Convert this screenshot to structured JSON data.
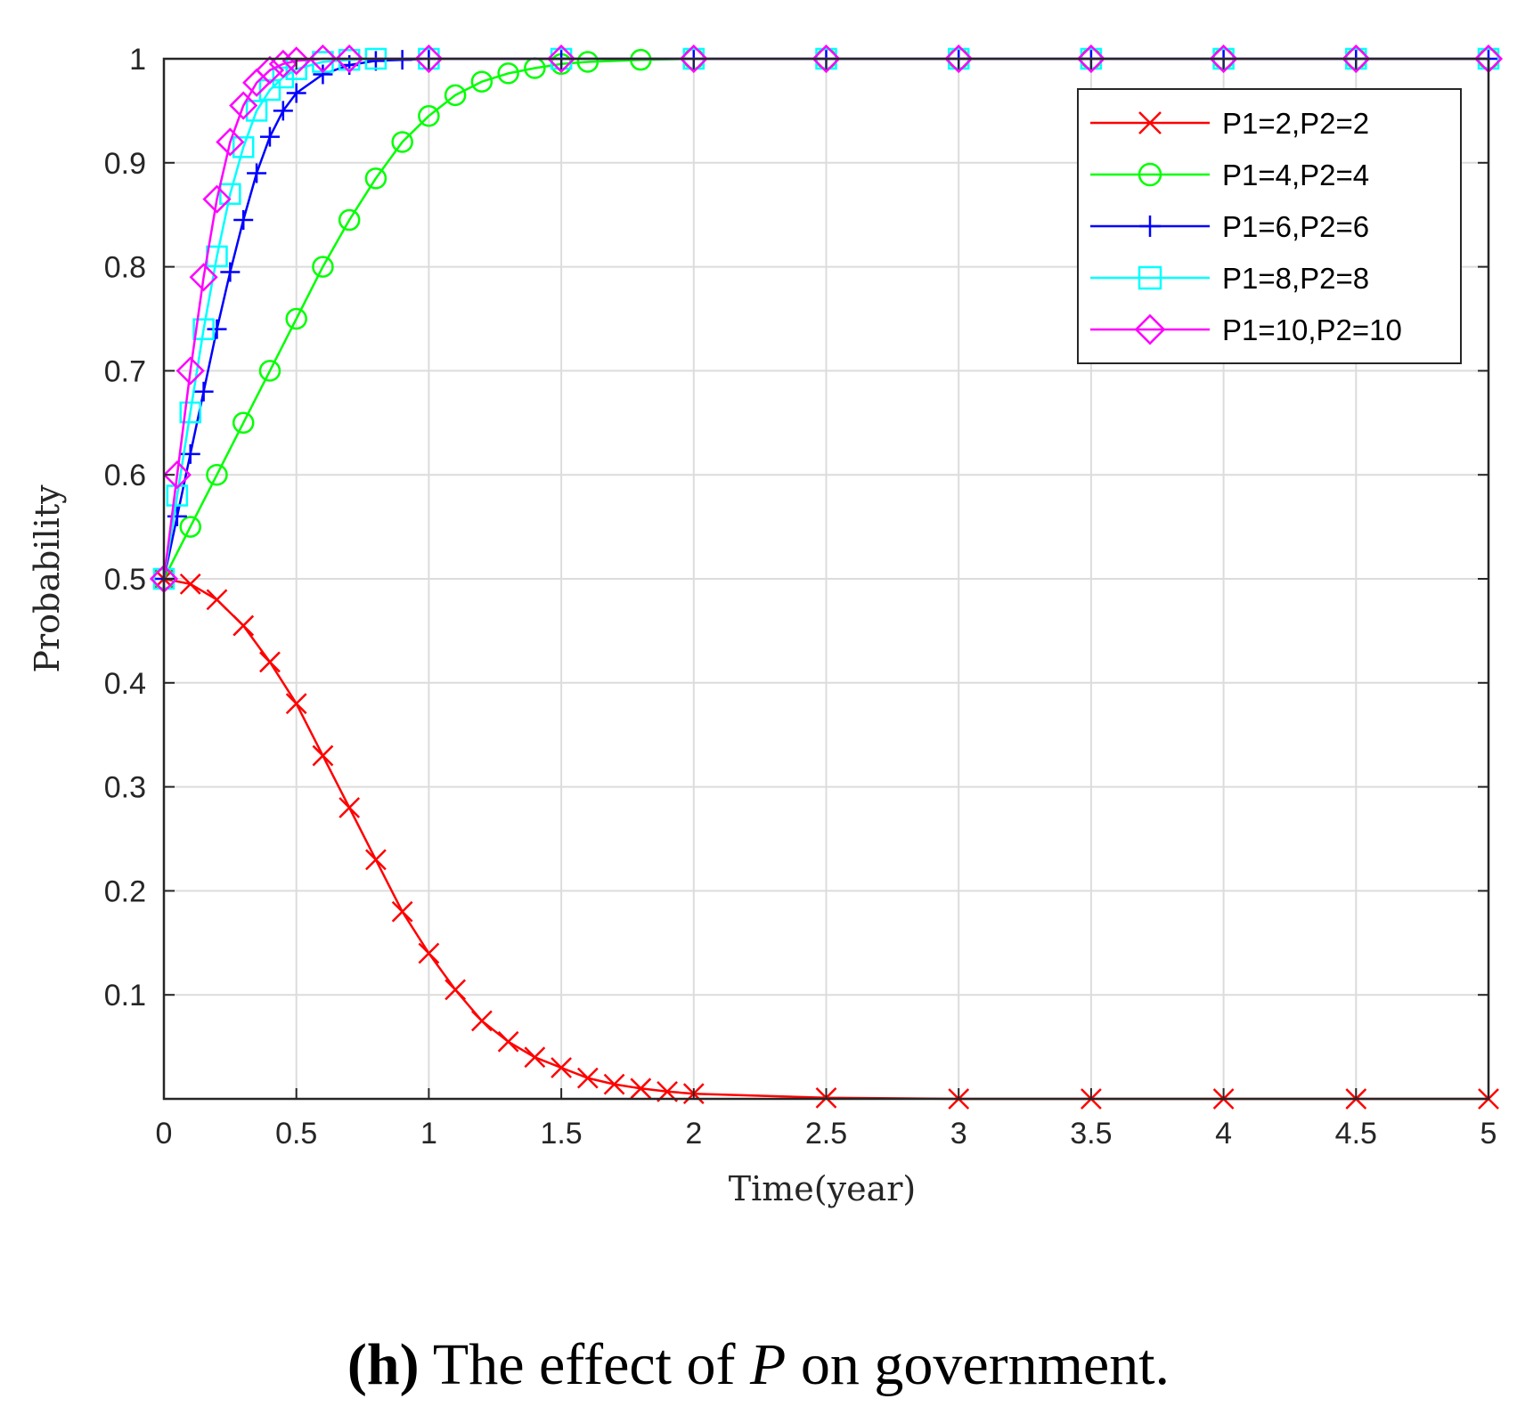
{
  "chart_data": {
    "type": "line",
    "title": "",
    "xlabel": "Time(year)",
    "ylabel": "Probability",
    "xlim": [
      0,
      5
    ],
    "ylim": [
      0,
      1
    ],
    "grid": true,
    "legend_position": "top-right",
    "x_ticks": [
      "0",
      "0.5",
      "1",
      "1.5",
      "2",
      "2.5",
      "3",
      "3.5",
      "4",
      "4.5",
      "5"
    ],
    "y_ticks": [
      "0.1",
      "0.2",
      "0.3",
      "0.4",
      "0.5",
      "0.6",
      "0.7",
      "0.8",
      "0.9",
      "1"
    ],
    "series": [
      {
        "name": "P1=2,P2=2",
        "color": "#ff0000",
        "marker": "x",
        "x": [
          0,
          0.1,
          0.2,
          0.3,
          0.4,
          0.5,
          0.6,
          0.7,
          0.8,
          0.9,
          1.0,
          1.1,
          1.2,
          1.3,
          1.4,
          1.5,
          1.6,
          1.7,
          1.8,
          1.9,
          2.0,
          2.5,
          3.0,
          3.5,
          4.0,
          4.5,
          5.0
        ],
        "y": [
          0.5,
          0.495,
          0.48,
          0.455,
          0.42,
          0.38,
          0.33,
          0.28,
          0.23,
          0.18,
          0.14,
          0.105,
          0.075,
          0.055,
          0.04,
          0.03,
          0.02,
          0.014,
          0.01,
          0.007,
          0.005,
          0.001,
          0.0,
          0.0,
          0.0,
          0.0,
          0.0
        ]
      },
      {
        "name": "P1=4,P2=4",
        "color": "#00ff00",
        "marker": "o",
        "x": [
          0,
          0.1,
          0.2,
          0.3,
          0.4,
          0.5,
          0.6,
          0.7,
          0.8,
          0.9,
          1.0,
          1.1,
          1.2,
          1.3,
          1.4,
          1.5,
          1.6,
          1.8,
          2.0,
          2.5,
          3.0,
          3.5,
          4.0,
          4.5,
          5.0
        ],
        "y": [
          0.5,
          0.55,
          0.6,
          0.65,
          0.7,
          0.75,
          0.8,
          0.845,
          0.885,
          0.92,
          0.945,
          0.965,
          0.978,
          0.986,
          0.991,
          0.995,
          0.997,
          0.999,
          1.0,
          1.0,
          1.0,
          1.0,
          1.0,
          1.0,
          1.0
        ]
      },
      {
        "name": "P1=6,P2=6",
        "color": "#0000ff",
        "marker": "+",
        "x": [
          0,
          0.05,
          0.1,
          0.15,
          0.2,
          0.25,
          0.3,
          0.35,
          0.4,
          0.45,
          0.5,
          0.6,
          0.7,
          0.8,
          0.9,
          1.0,
          1.5,
          2.0,
          2.5,
          3.0,
          3.5,
          4.0,
          4.5,
          5.0
        ],
        "y": [
          0.5,
          0.56,
          0.62,
          0.68,
          0.74,
          0.795,
          0.845,
          0.89,
          0.925,
          0.95,
          0.967,
          0.985,
          0.994,
          0.998,
          0.999,
          1.0,
          1.0,
          1.0,
          1.0,
          1.0,
          1.0,
          1.0,
          1.0,
          1.0
        ]
      },
      {
        "name": "P1=8,P2=8",
        "color": "#00ffff",
        "marker": "square",
        "x": [
          0,
          0.05,
          0.1,
          0.15,
          0.2,
          0.25,
          0.3,
          0.35,
          0.4,
          0.45,
          0.5,
          0.6,
          0.7,
          0.8,
          1.0,
          1.5,
          2.0,
          2.5,
          3.0,
          3.5,
          4.0,
          4.5,
          5.0
        ],
        "y": [
          0.5,
          0.58,
          0.66,
          0.74,
          0.81,
          0.87,
          0.915,
          0.95,
          0.97,
          0.982,
          0.99,
          0.997,
          0.999,
          1.0,
          1.0,
          1.0,
          1.0,
          1.0,
          1.0,
          1.0,
          1.0,
          1.0,
          1.0
        ]
      },
      {
        "name": "P1=10,P2=10",
        "color": "#ff00ff",
        "marker": "diamond",
        "x": [
          0,
          0.05,
          0.1,
          0.15,
          0.2,
          0.25,
          0.3,
          0.35,
          0.4,
          0.45,
          0.5,
          0.6,
          0.7,
          1.0,
          1.5,
          2.0,
          2.5,
          3.0,
          3.5,
          4.0,
          4.5,
          5.0
        ],
        "y": [
          0.5,
          0.6,
          0.7,
          0.79,
          0.865,
          0.92,
          0.955,
          0.977,
          0.989,
          0.995,
          0.998,
          1.0,
          1.0,
          1.0,
          1.0,
          1.0,
          1.0,
          1.0,
          1.0,
          1.0,
          1.0,
          1.0
        ]
      }
    ]
  },
  "caption": {
    "label": "(h)",
    "text_before": "The effect of",
    "symbol": "P",
    "text_after": "on government."
  }
}
